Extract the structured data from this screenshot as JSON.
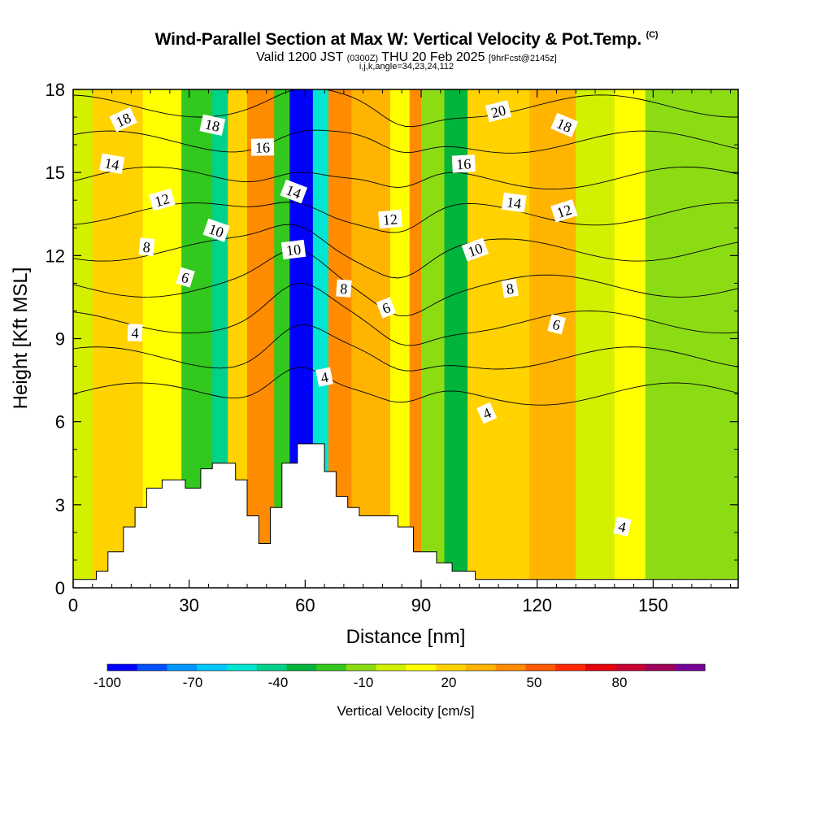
{
  "title": {
    "main": "Wind-Parallel Section at Max W: Vertical Velocity & Pot.Temp.",
    "copyright": "(C)",
    "valid_a": "Valid 1200 JST",
    "valid_utc": "(0300Z)",
    "valid_b": "THU 20 Feb 2025",
    "fcst": "[9hrFcst@2145z]",
    "sub": "i,j,k,angle=34,23,24,112"
  },
  "chart_data": {
    "type": "heatmap",
    "xlabel": "Distance [nm]",
    "ylabel": "Height [Kft MSL]",
    "xlim": [
      0,
      172
    ],
    "ylim": [
      0,
      18
    ],
    "x_ticks": [
      0,
      30,
      60,
      90,
      120,
      150
    ],
    "y_ticks": [
      0,
      3,
      6,
      9,
      12,
      15,
      18
    ],
    "colorbar": {
      "label": "Vertical Velocity [cm/s]",
      "tick_labels": [
        "-100",
        "-70",
        "-40",
        "-10",
        "20",
        "50",
        "80"
      ],
      "range": [
        -100,
        110
      ],
      "colors": [
        "#0000ff",
        "#0050ff",
        "#0096ff",
        "#00c8ff",
        "#00e6d2",
        "#00d28c",
        "#00b43c",
        "#32c81e",
        "#8cdc14",
        "#d2f000",
        "#ffff00",
        "#ffd200",
        "#ffb400",
        "#ff8c00",
        "#ff5a00",
        "#ff2800",
        "#e6000a",
        "#c80032",
        "#a0005a",
        "#780096"
      ]
    },
    "velocity_bands": [
      {
        "x": [
          0,
          5
        ],
        "w": 0
      },
      {
        "x": [
          5,
          18
        ],
        "w": 22
      },
      {
        "x": [
          18,
          28
        ],
        "w": 8
      },
      {
        "x": [
          28,
          36
        ],
        "w": -20
      },
      {
        "x": [
          36,
          40
        ],
        "w": -40
      },
      {
        "x": [
          40,
          45
        ],
        "w": 25
      },
      {
        "x": [
          45,
          52
        ],
        "w": 38
      },
      {
        "x": [
          52,
          56
        ],
        "w": -20
      },
      {
        "x": [
          56,
          62
        ],
        "w": -90
      },
      {
        "x": [
          62,
          66
        ],
        "w": -55
      },
      {
        "x": [
          66,
          72
        ],
        "w": 45
      },
      {
        "x": [
          72,
          82
        ],
        "w": 28
      },
      {
        "x": [
          82,
          87
        ],
        "w": 15
      },
      {
        "x": [
          87,
          90
        ],
        "w": 45
      },
      {
        "x": [
          90,
          96
        ],
        "w": -10
      },
      {
        "x": [
          96,
          102
        ],
        "w": -35
      },
      {
        "x": [
          102,
          118
        ],
        "w": 18
      },
      {
        "x": [
          118,
          126
        ],
        "w": 35
      },
      {
        "x": [
          126,
          130
        ],
        "w": 28
      },
      {
        "x": [
          130,
          140
        ],
        "w": -5
      },
      {
        "x": [
          140,
          148
        ],
        "w": 12
      },
      {
        "x": [
          148,
          160
        ],
        "w": -15
      },
      {
        "x": [
          160,
          172
        ],
        "w": -8
      }
    ],
    "terrain": [
      [
        0,
        0.3
      ],
      [
        6,
        0.6
      ],
      [
        9,
        1.3
      ],
      [
        13,
        2.2
      ],
      [
        16,
        2.9
      ],
      [
        19,
        3.6
      ],
      [
        23,
        3.9
      ],
      [
        29,
        3.6
      ],
      [
        33,
        4.3
      ],
      [
        36,
        4.5
      ],
      [
        42,
        3.9
      ],
      [
        45,
        2.6
      ],
      [
        48,
        1.6
      ],
      [
        51,
        2.9
      ],
      [
        54,
        4.5
      ],
      [
        58,
        5.2
      ],
      [
        65,
        4.2
      ],
      [
        68,
        3.3
      ],
      [
        71,
        2.9
      ],
      [
        74,
        2.6
      ],
      [
        84,
        2.2
      ],
      [
        88,
        1.3
      ],
      [
        94,
        0.9
      ],
      [
        98,
        0.6
      ],
      [
        104,
        0.3
      ],
      [
        172,
        0.3
      ]
    ],
    "theta_contour_labels": [
      {
        "text": "18",
        "x": 13,
        "y": 16.9
      },
      {
        "text": "18",
        "x": 36,
        "y": 16.7
      },
      {
        "text": "16",
        "x": 49,
        "y": 15.9
      },
      {
        "text": "20",
        "x": 110,
        "y": 17.2
      },
      {
        "text": "18",
        "x": 127,
        "y": 16.7
      },
      {
        "text": "14",
        "x": 10,
        "y": 15.3
      },
      {
        "text": "16",
        "x": 101,
        "y": 15.3
      },
      {
        "text": "12",
        "x": 23,
        "y": 14.0
      },
      {
        "text": "14",
        "x": 57,
        "y": 14.3
      },
      {
        "text": "14",
        "x": 114,
        "y": 13.9
      },
      {
        "text": "12",
        "x": 82,
        "y": 13.3
      },
      {
        "text": "12",
        "x": 127,
        "y": 13.6
      },
      {
        "text": "10",
        "x": 37,
        "y": 12.9
      },
      {
        "text": "8",
        "x": 19,
        "y": 12.3
      },
      {
        "text": "10",
        "x": 57,
        "y": 12.2
      },
      {
        "text": "10",
        "x": 104,
        "y": 12.2
      },
      {
        "text": "6",
        "x": 29,
        "y": 11.2
      },
      {
        "text": "8",
        "x": 70,
        "y": 10.8
      },
      {
        "text": "8",
        "x": 113,
        "y": 10.8
      },
      {
        "text": "6",
        "x": 81,
        "y": 10.1
      },
      {
        "text": "6",
        "x": 125,
        "y": 9.5
      },
      {
        "text": "4",
        "x": 16,
        "y": 9.2
      },
      {
        "text": "4",
        "x": 65,
        "y": 7.6
      },
      {
        "text": "4",
        "x": 107,
        "y": 6.3
      },
      {
        "text": "4",
        "x": 142,
        "y": 2.2
      }
    ],
    "theta_contour_levels": [
      4,
      6,
      8,
      10,
      12,
      14,
      16,
      18,
      20
    ]
  }
}
